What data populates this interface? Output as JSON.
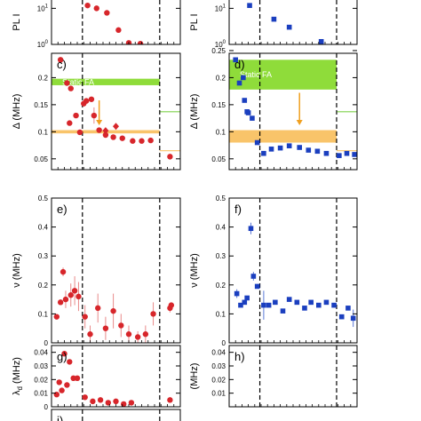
{
  "colors": {
    "left_marker": "#d7262b",
    "left_errbar": "#e98a8a",
    "right_marker": "#1b3fbf",
    "right_errbar": "#5a78d6",
    "static_band": "#8fdc3a",
    "exp_band": "#f9c46a",
    "arrow": "#f0a020",
    "green_line": "#7fd24a",
    "dashed_line": "#000000"
  },
  "chart_data": [
    {
      "panel": "left-top",
      "type": "scatter",
      "marker": "circle",
      "ylabel": "PL I",
      "ylog": true,
      "ylim": [
        1,
        30
      ],
      "yticks": [
        {
          "label": "10",
          "exp": "1",
          "value": 10
        },
        {
          "label": "10",
          "exp": "0",
          "value": 1
        }
      ],
      "xlim": [
        0,
        100
      ],
      "dividers": [
        24,
        84
      ],
      "points": [
        {
          "x": 28,
          "y": 12
        },
        {
          "x": 35,
          "y": 10
        },
        {
          "x": 43,
          "y": 7.5
        },
        {
          "x": 52,
          "y": 2.5
        },
        {
          "x": 60,
          "y": 1.1
        },
        {
          "x": 69,
          "y": 1.05
        }
      ]
    },
    {
      "panel": "right-top",
      "type": "scatter",
      "marker": "square",
      "ylabel": "PL I",
      "ylog": true,
      "ylim": [
        1,
        30
      ],
      "yticks": [
        {
          "label": "10",
          "exp": "1",
          "value": 10
        },
        {
          "label": "10",
          "exp": "0",
          "value": 1
        }
      ],
      "xlim": [
        0,
        100
      ],
      "dividers": [
        24,
        84
      ],
      "points": [
        {
          "x": 16,
          "y": 12
        },
        {
          "x": 35,
          "y": 5
        },
        {
          "x": 47,
          "y": 3
        },
        {
          "x": 72,
          "y": 1.2
        }
      ]
    },
    {
      "panel": "c",
      "panel_label": "c)",
      "type": "scatter",
      "marker": "circle",
      "ylabel": "Δ (MHz)",
      "ylim": [
        0.03,
        0.245
      ],
      "yticks": [
        {
          "label": "0.2",
          "value": 0.2
        },
        {
          "label": "0.15",
          "value": 0.15
        },
        {
          "label": "0.1",
          "value": 0.1
        },
        {
          "label": "0.05",
          "value": 0.05
        }
      ],
      "xlim": [
        0,
        100
      ],
      "dividers": [
        24,
        84
      ],
      "band_static": {
        "label": "Static FA",
        "range": [
          0.186,
          0.198
        ],
        "x": [
          0,
          84
        ]
      },
      "band_exp": {
        "range": [
          0.097,
          0.103
        ],
        "x": [
          0,
          84
        ]
      },
      "arrow": {
        "x": 37,
        "from": 0.158,
        "to": 0.112
      },
      "green_line": {
        "value": 0.137,
        "x": [
          84,
          100
        ]
      },
      "orange_line": {
        "value": 0.065,
        "x": [
          84,
          100
        ]
      },
      "points": [
        {
          "x": 7,
          "y": 0.233
        },
        {
          "x": 12,
          "y": 0.19,
          "err": 0.004
        },
        {
          "x": 15,
          "y": 0.18
        },
        {
          "x": 14,
          "y": 0.116
        },
        {
          "x": 19,
          "y": 0.13
        },
        {
          "x": 22,
          "y": 0.099
        },
        {
          "x": 25,
          "y": 0.152
        },
        {
          "x": 27,
          "y": 0.157
        },
        {
          "x": 31,
          "y": 0.16
        },
        {
          "x": 33,
          "y": 0.13,
          "err": 0.015
        },
        {
          "x": 37,
          "y": 0.103
        },
        {
          "x": 42,
          "y": 0.094
        },
        {
          "x": 48,
          "y": 0.09
        },
        {
          "x": 55,
          "y": 0.088
        },
        {
          "x": 63,
          "y": 0.083
        },
        {
          "x": 70,
          "y": 0.083
        },
        {
          "x": 77,
          "y": 0.084
        },
        {
          "x": 92,
          "y": 0.054
        }
      ],
      "diamonds": [
        {
          "x": 42,
          "y": 0.102
        },
        {
          "x": 50,
          "y": 0.11
        }
      ]
    },
    {
      "panel": "d",
      "panel_label": "d)",
      "type": "scatter",
      "marker": "square",
      "ylabel": "Δ (MHz)",
      "ylim": [
        0.03,
        0.245
      ],
      "yticks": [
        {
          "label": "0.25",
          "value": 0.25
        },
        {
          "label": "0.2",
          "value": 0.2
        },
        {
          "label": "0.15",
          "value": 0.15
        },
        {
          "label": "0.1",
          "value": 0.1
        },
        {
          "label": "0.05",
          "value": 0.05
        }
      ],
      "xlim": [
        0,
        100
      ],
      "dividers": [
        24,
        84
      ],
      "band_static": {
        "label": "Static FA",
        "range": [
          0.178,
          0.233
        ],
        "x": [
          0,
          84
        ]
      },
      "band_exp": {
        "range": [
          0.08,
          0.103
        ],
        "x": [
          0,
          84
        ]
      },
      "arrow": {
        "x": 55,
        "from": 0.172,
        "to": 0.112
      },
      "green_line": {
        "value": 0.137,
        "x": [
          84,
          100
        ]
      },
      "orange_line": {
        "value": 0.065,
        "x": [
          84,
          100
        ]
      },
      "points": [
        {
          "x": 5,
          "y": 0.233
        },
        {
          "x": 8,
          "y": 0.19
        },
        {
          "x": 11,
          "y": 0.2
        },
        {
          "x": 12,
          "y": 0.158
        },
        {
          "x": 14,
          "y": 0.137
        },
        {
          "x": 15,
          "y": 0.135
        },
        {
          "x": 18,
          "y": 0.125
        },
        {
          "x": 22,
          "y": 0.08
        },
        {
          "x": 27,
          "y": 0.06
        },
        {
          "x": 33,
          "y": 0.068
        },
        {
          "x": 40,
          "y": 0.07
        },
        {
          "x": 47,
          "y": 0.074
        },
        {
          "x": 55,
          "y": 0.071
        },
        {
          "x": 62,
          "y": 0.066
        },
        {
          "x": 69,
          "y": 0.064
        },
        {
          "x": 76,
          "y": 0.06
        },
        {
          "x": 86,
          "y": 0.056
        },
        {
          "x": 92,
          "y": 0.06
        },
        {
          "x": 98,
          "y": 0.058
        }
      ]
    },
    {
      "panel": "e",
      "panel_label": "e)",
      "type": "scatter",
      "marker": "circle",
      "ylabel": "ν (MHz)",
      "ylim": [
        0,
        0.5
      ],
      "yticks": [
        {
          "label": "0.5",
          "value": 0.5
        },
        {
          "label": "0.4",
          "value": 0.4
        },
        {
          "label": "0.3",
          "value": 0.3
        },
        {
          "label": "0.2",
          "value": 0.2
        },
        {
          "label": "0.1",
          "value": 0.1
        },
        {
          "label": "0",
          "value": 0
        }
      ],
      "xlim": [
        0,
        100
      ],
      "dividers": [
        24,
        84
      ],
      "points": [
        {
          "x": 4,
          "y": 0.09
        },
        {
          "x": 7,
          "y": 0.14
        },
        {
          "x": 9,
          "y": 0.245,
          "err": 0.015
        },
        {
          "x": 11,
          "y": 0.15,
          "err": 0.03
        },
        {
          "x": 15,
          "y": 0.165,
          "err": 0.04
        },
        {
          "x": 18,
          "y": 0.18,
          "err": 0.05
        },
        {
          "x": 21,
          "y": 0.16,
          "err": 0.05
        },
        {
          "x": 26,
          "y": 0.09,
          "err": 0.04
        },
        {
          "x": 30,
          "y": 0.03,
          "err": 0.03
        },
        {
          "x": 36,
          "y": 0.12,
          "err": 0.05
        },
        {
          "x": 42,
          "y": 0.05,
          "err": 0.04
        },
        {
          "x": 48,
          "y": 0.11,
          "err": 0.06
        },
        {
          "x": 54,
          "y": 0.06,
          "err": 0.04
        },
        {
          "x": 60,
          "y": 0.03,
          "err": 0.03
        },
        {
          "x": 67,
          "y": 0.02,
          "err": 0.02
        },
        {
          "x": 73,
          "y": 0.03,
          "err": 0.03
        },
        {
          "x": 79,
          "y": 0.1,
          "err": 0.04
        },
        {
          "x": 92,
          "y": 0.12,
          "err": 0.015
        },
        {
          "x": 93,
          "y": 0.13
        }
      ]
    },
    {
      "panel": "f",
      "panel_label": "f)",
      "type": "scatter",
      "marker": "square",
      "ylabel": "ν (MHz)",
      "ylim": [
        0,
        0.5
      ],
      "yticks": [
        {
          "label": "0.5",
          "value": 0.5
        },
        {
          "label": "0.4",
          "value": 0.4
        },
        {
          "label": "0.3",
          "value": 0.3
        },
        {
          "label": "0.2",
          "value": 0.2
        },
        {
          "label": "0.1",
          "value": 0.1
        },
        {
          "label": "0",
          "value": 0
        }
      ],
      "xlim": [
        0,
        100
      ],
      "dividers": [
        24,
        84
      ],
      "points": [
        {
          "x": 6,
          "y": 0.17,
          "err": 0.015
        },
        {
          "x": 9,
          "y": 0.13
        },
        {
          "x": 12,
          "y": 0.14
        },
        {
          "x": 14,
          "y": 0.155
        },
        {
          "x": 17,
          "y": 0.395,
          "err": 0.02
        },
        {
          "x": 19,
          "y": 0.23,
          "err": 0.015
        },
        {
          "x": 22,
          "y": 0.195
        },
        {
          "x": 27,
          "y": 0.13,
          "err": 0.05
        },
        {
          "x": 31,
          "y": 0.13
        },
        {
          "x": 36,
          "y": 0.14
        },
        {
          "x": 42,
          "y": 0.11
        },
        {
          "x": 47,
          "y": 0.15
        },
        {
          "x": 53,
          "y": 0.14
        },
        {
          "x": 59,
          "y": 0.12
        },
        {
          "x": 64,
          "y": 0.14
        },
        {
          "x": 70,
          "y": 0.13
        },
        {
          "x": 76,
          "y": 0.14
        },
        {
          "x": 82,
          "y": 0.13
        },
        {
          "x": 88,
          "y": 0.09
        },
        {
          "x": 93,
          "y": 0.12
        },
        {
          "x": 97,
          "y": 0.085,
          "err": 0.03
        }
      ]
    },
    {
      "panel": "g",
      "panel_label": "g)",
      "type": "scatter",
      "marker": "circle",
      "ylabel": "λ",
      "ylabel_sub": "d",
      "ylabel_unit": "(MHz)",
      "ylim": [
        0,
        0.045
      ],
      "yticks": [
        {
          "label": "0.04",
          "value": 0.04
        },
        {
          "label": "0.03",
          "value": 0.03
        },
        {
          "label": "0.02",
          "value": 0.02
        },
        {
          "label": "0.01",
          "value": 0.01
        },
        {
          "label": "0",
          "value": 0
        }
      ],
      "xlim": [
        0,
        100
      ],
      "dividers": [
        24,
        84
      ],
      "points": [
        {
          "x": 4,
          "y": 0.009
        },
        {
          "x": 6,
          "y": 0.018
        },
        {
          "x": 8,
          "y": 0.012
        },
        {
          "x": 10,
          "y": 0.039
        },
        {
          "x": 12,
          "y": 0.016
        },
        {
          "x": 14,
          "y": 0.033
        },
        {
          "x": 17,
          "y": 0.021
        },
        {
          "x": 20,
          "y": 0.021
        },
        {
          "x": 26,
          "y": 0.007
        },
        {
          "x": 32,
          "y": 0.004
        },
        {
          "x": 38,
          "y": 0.005
        },
        {
          "x": 44,
          "y": 0.003
        },
        {
          "x": 50,
          "y": 0.004
        },
        {
          "x": 56,
          "y": 0.002
        },
        {
          "x": 62,
          "y": 0.003
        },
        {
          "x": 92,
          "y": 0.005
        }
      ]
    },
    {
      "panel": "h",
      "panel_label": "h)",
      "type": "scatter",
      "marker": "square",
      "ylabel": "(MHz)",
      "ylim": [
        0,
        0.045
      ],
      "yticks": [
        {
          "label": "0.04",
          "value": 0.04
        },
        {
          "label": "0.03",
          "value": 0.03
        },
        {
          "label": "0.02",
          "value": 0.02
        },
        {
          "label": "0.01",
          "value": 0.01
        }
      ],
      "xlim": [
        0,
        100
      ],
      "dividers": [
        24,
        84
      ],
      "points": []
    },
    {
      "panel": "i",
      "panel_label": "i)",
      "type": "scatter",
      "marker": "circle",
      "ylabel": "",
      "partial": true,
      "xlim": [
        0,
        100
      ],
      "dividers": [
        24,
        84
      ],
      "points": []
    }
  ]
}
